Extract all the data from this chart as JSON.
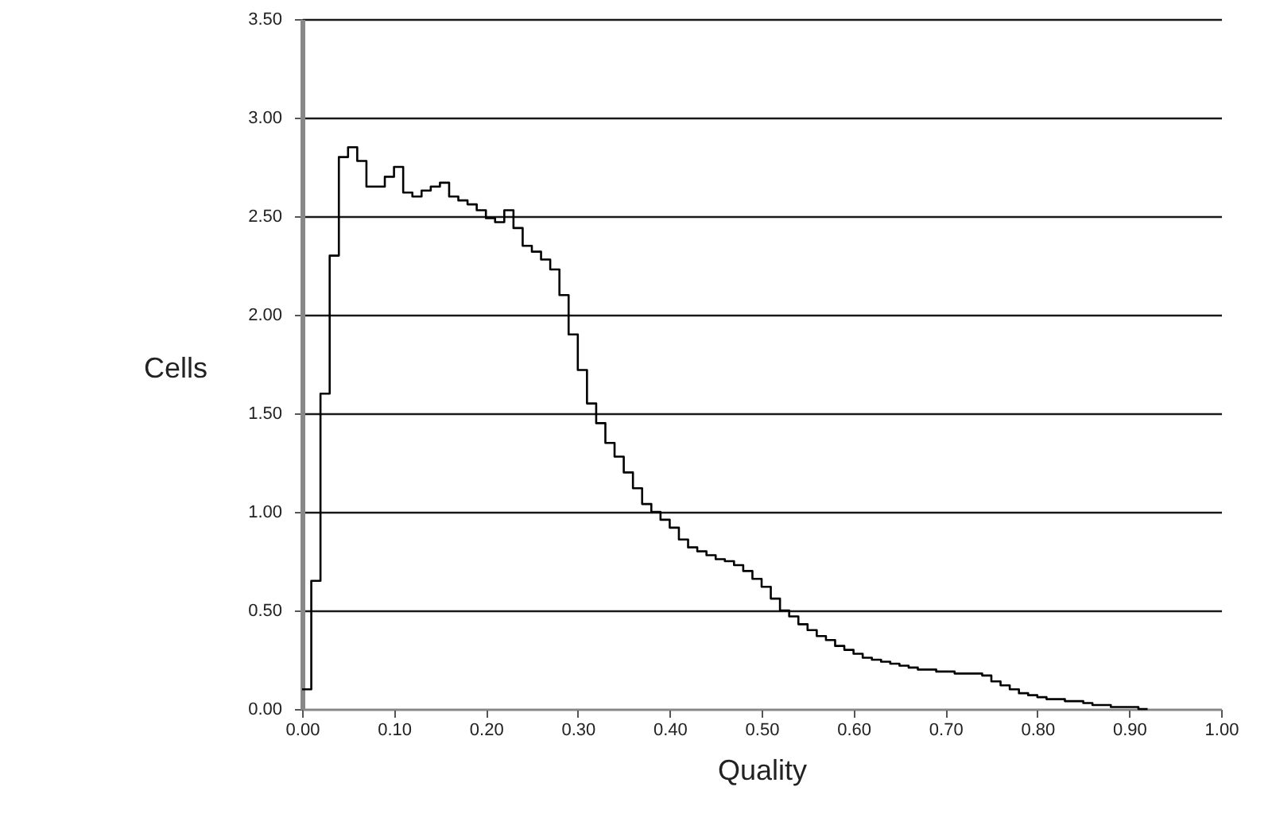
{
  "chart_data": {
    "type": "step",
    "xlabel": "Quality",
    "ylabel": "Cells",
    "x": [
      0.0,
      0.01,
      0.02,
      0.03,
      0.04,
      0.05,
      0.06,
      0.07,
      0.08,
      0.09,
      0.1,
      0.11,
      0.12,
      0.13,
      0.14,
      0.15,
      0.16,
      0.17,
      0.18,
      0.19,
      0.2,
      0.21,
      0.22,
      0.23,
      0.24,
      0.25,
      0.26,
      0.27,
      0.28,
      0.29,
      0.3,
      0.31,
      0.32,
      0.33,
      0.34,
      0.35,
      0.36,
      0.37,
      0.38,
      0.39,
      0.4,
      0.41,
      0.42,
      0.43,
      0.44,
      0.45,
      0.46,
      0.47,
      0.48,
      0.49,
      0.5,
      0.51,
      0.52,
      0.53,
      0.54,
      0.55,
      0.56,
      0.57,
      0.58,
      0.59,
      0.6,
      0.61,
      0.62,
      0.63,
      0.64,
      0.65,
      0.66,
      0.67,
      0.68,
      0.69,
      0.7,
      0.71,
      0.72,
      0.73,
      0.74,
      0.75,
      0.76,
      0.77,
      0.78,
      0.79,
      0.8,
      0.81,
      0.82,
      0.83,
      0.84,
      0.85,
      0.86,
      0.87,
      0.88,
      0.89,
      0.9,
      0.91,
      0.92
    ],
    "series": [
      {
        "color": "#000000",
        "values": [
          0.1,
          0.65,
          1.6,
          2.3,
          2.8,
          2.85,
          2.78,
          2.65,
          2.65,
          2.7,
          2.75,
          2.62,
          2.6,
          2.63,
          2.65,
          2.67,
          2.6,
          2.58,
          2.56,
          2.53,
          2.49,
          2.47,
          2.53,
          2.44,
          2.35,
          2.32,
          2.28,
          2.23,
          2.1,
          1.9,
          1.72,
          1.55,
          1.45,
          1.35,
          1.28,
          1.2,
          1.12,
          1.04,
          1.0,
          0.96,
          0.92,
          0.86,
          0.82,
          0.8,
          0.78,
          0.76,
          0.75,
          0.73,
          0.7,
          0.66,
          0.62,
          0.56,
          0.5,
          0.47,
          0.43,
          0.4,
          0.37,
          0.35,
          0.32,
          0.3,
          0.28,
          0.26,
          0.25,
          0.24,
          0.23,
          0.22,
          0.21,
          0.2,
          0.2,
          0.19,
          0.19,
          0.18,
          0.18,
          0.18,
          0.17,
          0.14,
          0.12,
          0.1,
          0.08,
          0.07,
          0.06,
          0.05,
          0.05,
          0.04,
          0.04,
          0.03,
          0.02,
          0.02,
          0.01,
          0.01,
          0.01,
          0.0,
          0.0
        ]
      }
    ],
    "xlim": [
      0,
      1
    ],
    "xticks": [
      {
        "value": 0,
        "label": "0.00"
      },
      {
        "value": 0.1,
        "label": "0.10"
      },
      {
        "value": 0.2,
        "label": "0.20"
      },
      {
        "value": 0.3,
        "label": "0.30"
      },
      {
        "value": 0.4,
        "label": "0.40"
      },
      {
        "value": 0.5,
        "label": "0.50"
      },
      {
        "value": 0.6,
        "label": "0.60"
      },
      {
        "value": 0.7,
        "label": "0.70"
      },
      {
        "value": 0.8,
        "label": "0.80"
      },
      {
        "value": 0.9,
        "label": "0.90"
      },
      {
        "value": 1,
        "label": "1.00"
      }
    ],
    "ylim": [
      0,
      3.5
    ],
    "yticks": [
      {
        "value": 0,
        "label": "0.00"
      },
      {
        "value": 0.5,
        "label": "0.50"
      },
      {
        "value": 1,
        "label": "1.00"
      },
      {
        "value": 1.5,
        "label": "1.50"
      },
      {
        "value": 2,
        "label": "2.00"
      },
      {
        "value": 2.5,
        "label": "2.50"
      },
      {
        "value": 3,
        "label": "3.00"
      },
      {
        "value": 3.5,
        "label": "3.50"
      }
    ],
    "grid": "y",
    "line_style": "solid"
  }
}
